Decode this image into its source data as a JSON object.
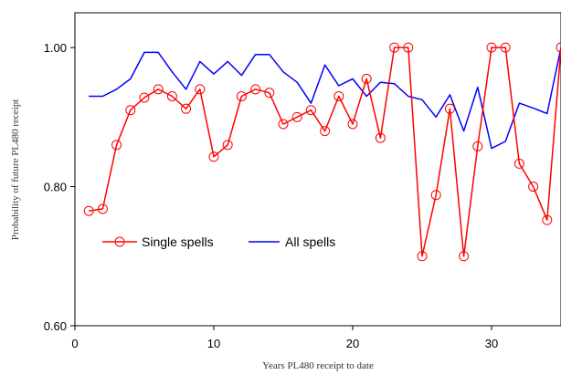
{
  "chart_data": {
    "type": "line",
    "title": "",
    "xlabel": "Years PL480 receipt to date",
    "ylabel": "Probability of future PL480 receipt",
    "xlim": [
      0,
      35
    ],
    "ylim": [
      0.6,
      1.05
    ],
    "x_ticks": [
      0,
      10,
      20,
      30
    ],
    "x_tick_labels": [
      "0",
      "10",
      "20",
      "30"
    ],
    "y_ticks": [
      0.6,
      0.8,
      1.0
    ],
    "y_tick_labels": [
      "0.60",
      "0.80",
      "1.00"
    ],
    "grid": false,
    "legend_position": "middle-left",
    "series": [
      {
        "name": "Single spells",
        "color": "#ff0000",
        "marker": "circle",
        "x": [
          1,
          2,
          3,
          4,
          5,
          6,
          7,
          8,
          9,
          10,
          11,
          12,
          13,
          14,
          15,
          16,
          17,
          18,
          19,
          20,
          21,
          22,
          23,
          24,
          25,
          26,
          27,
          28,
          29,
          30,
          31,
          32,
          33,
          34,
          35
        ],
        "y": [
          0.765,
          0.768,
          0.86,
          0.91,
          0.928,
          0.94,
          0.93,
          0.912,
          0.94,
          0.843,
          0.86,
          0.93,
          0.94,
          0.935,
          0.89,
          0.9,
          0.91,
          0.88,
          0.93,
          0.89,
          0.955,
          0.87,
          1.0,
          1.0,
          0.7,
          0.788,
          0.912,
          0.7,
          0.858,
          1.0,
          1.0,
          0.833,
          0.8,
          0.752,
          1.0
        ]
      },
      {
        "name": "All spells",
        "color": "#0000ff",
        "marker": "none",
        "x": [
          1,
          2,
          3,
          4,
          5,
          6,
          7,
          8,
          9,
          10,
          11,
          12,
          13,
          14,
          15,
          16,
          17,
          18,
          19,
          20,
          21,
          22,
          23,
          24,
          25,
          26,
          27,
          28,
          29,
          30,
          31,
          32,
          33,
          34,
          35
        ],
        "y": [
          0.93,
          0.93,
          0.94,
          0.955,
          0.993,
          0.993,
          0.965,
          0.94,
          0.98,
          0.962,
          0.98,
          0.96,
          0.99,
          0.99,
          0.965,
          0.95,
          0.92,
          0.975,
          0.945,
          0.955,
          0.93,
          0.95,
          0.948,
          0.93,
          0.925,
          0.9,
          0.932,
          0.88,
          0.943,
          0.855,
          0.865,
          0.92,
          0.913,
          0.905,
          1.0
        ]
      }
    ]
  }
}
